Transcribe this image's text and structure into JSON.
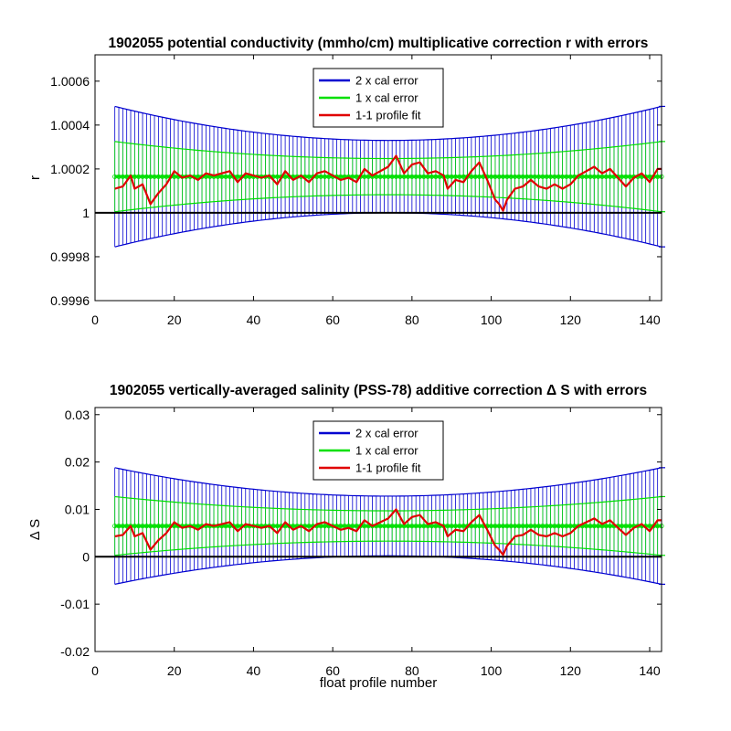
{
  "colors": {
    "two_cal": "#0000d0",
    "one_cal": "#00e000",
    "fit": "#e00000",
    "axis": "#000000"
  },
  "chart_data": [
    {
      "type": "line",
      "title": "1902055 potential conductivity (mmho/cm) multiplicative correction r with errors",
      "xlabel": "",
      "ylabel": "r",
      "xlim": [
        0,
        143
      ],
      "ylim": [
        0.9996,
        1.00072
      ],
      "xticks": [
        0,
        20,
        40,
        60,
        80,
        100,
        120,
        140
      ],
      "yticks": [
        0.9996,
        0.9998,
        1,
        1.0002,
        1.0004,
        1.0006
      ],
      "ytick_labels": [
        "0.9996",
        "0.9998",
        "1",
        "1.0002",
        "1.0004",
        "1.0006"
      ],
      "legend_position": "top-center",
      "series": [
        {
          "name": "2 x cal error",
          "type": "errorbar",
          "center": 1.000165,
          "halfwidth_ends": 0.00032,
          "halfwidth_mid": 0.000165,
          "x_range": [
            5,
            143
          ]
        },
        {
          "name": "1 x cal error",
          "type": "errorbar",
          "center": 1.000165,
          "halfwidth_ends": 0.00016,
          "halfwidth_mid": 8.25e-05,
          "x_range": [
            5,
            143
          ]
        },
        {
          "name": "1-1 profile fit",
          "x": [
            5,
            7,
            9,
            10,
            12,
            14,
            16,
            18,
            20,
            22,
            24,
            26,
            28,
            30,
            32,
            34,
            36,
            38,
            40,
            42,
            44,
            46,
            48,
            50,
            52,
            54,
            56,
            58,
            60,
            62,
            64,
            66,
            68,
            70,
            72,
            74,
            76,
            78,
            80,
            82,
            84,
            86,
            88,
            89,
            91,
            93,
            95,
            97,
            99,
            101,
            102,
            103,
            104,
            106,
            108,
            110,
            112,
            114,
            116,
            118,
            120,
            122,
            124,
            126,
            128,
            130,
            132,
            134,
            136,
            138,
            140,
            142,
            143
          ],
          "values": [
            1.00011,
            1.00012,
            1.00017,
            1.00011,
            1.00013,
            1.00004,
            1.00009,
            1.00013,
            1.00019,
            1.00016,
            1.00017,
            1.00015,
            1.00018,
            1.00017,
            1.00018,
            1.00019,
            1.00014,
            1.00018,
            1.00017,
            1.00016,
            1.00017,
            1.00013,
            1.00019,
            1.00015,
            1.00017,
            1.00014,
            1.00018,
            1.00019,
            1.00017,
            1.00015,
            1.00016,
            1.00014,
            1.0002,
            1.00017,
            1.00019,
            1.00021,
            1.00026,
            1.00018,
            1.00022,
            1.00023,
            1.00018,
            1.00019,
            1.00017,
            1.00011,
            1.00015,
            1.00014,
            1.00019,
            1.00023,
            1.00015,
            1.00006,
            1.00004,
            1.00001,
            1.00006,
            1.00011,
            1.00012,
            1.00015,
            1.00012,
            1.00011,
            1.00013,
            1.00011,
            1.00013,
            1.00017,
            1.00019,
            1.00021,
            1.00018,
            1.0002,
            1.00016,
            1.00012,
            1.00016,
            1.00018,
            1.00014,
            1.0002,
            1.0002
          ]
        }
      ]
    },
    {
      "type": "line",
      "title": "1902055 vertically-averaged salinity (PSS-78) additive correction Δ S with errors",
      "xlabel": "float profile number",
      "ylabel": "Δ S",
      "xlim": [
        0,
        143
      ],
      "ylim": [
        -0.02,
        0.0315
      ],
      "xticks": [
        0,
        20,
        40,
        60,
        80,
        100,
        120,
        140
      ],
      "yticks": [
        -0.02,
        -0.01,
        0,
        0.01,
        0.02,
        0.03
      ],
      "ytick_labels": [
        "-0.02",
        "-0.01",
        "0",
        "0.01",
        "0.02",
        "0.03"
      ],
      "legend_position": "top-center",
      "series": [
        {
          "name": "2 x cal error",
          "type": "errorbar",
          "center": 0.0065,
          "halfwidth_ends": 0.0123,
          "halfwidth_mid": 0.0063,
          "x_range": [
            5,
            143
          ]
        },
        {
          "name": "1 x cal error",
          "type": "errorbar",
          "center": 0.0065,
          "halfwidth_ends": 0.0062,
          "halfwidth_mid": 0.0032,
          "x_range": [
            5,
            143
          ]
        },
        {
          "name": "1-1 profile fit",
          "x": [
            5,
            7,
            9,
            10,
            12,
            14,
            16,
            18,
            20,
            22,
            24,
            26,
            28,
            30,
            32,
            34,
            36,
            38,
            40,
            42,
            44,
            46,
            48,
            50,
            52,
            54,
            56,
            58,
            60,
            62,
            64,
            66,
            68,
            70,
            72,
            74,
            76,
            78,
            80,
            82,
            84,
            86,
            88,
            89,
            91,
            93,
            95,
            97,
            99,
            101,
            102,
            103,
            104,
            106,
            108,
            110,
            112,
            114,
            116,
            118,
            120,
            122,
            124,
            126,
            128,
            130,
            132,
            134,
            136,
            138,
            140,
            142,
            143
          ],
          "values": [
            0.0043,
            0.0046,
            0.0065,
            0.0043,
            0.005,
            0.0015,
            0.0035,
            0.005,
            0.0073,
            0.0061,
            0.0065,
            0.0057,
            0.0069,
            0.0065,
            0.0069,
            0.0073,
            0.0054,
            0.0069,
            0.0065,
            0.0061,
            0.0065,
            0.005,
            0.0073,
            0.0057,
            0.0065,
            0.0054,
            0.0069,
            0.0073,
            0.0065,
            0.0057,
            0.0061,
            0.0054,
            0.0077,
            0.0065,
            0.0073,
            0.0081,
            0.01,
            0.0069,
            0.0084,
            0.0088,
            0.0069,
            0.0073,
            0.0065,
            0.0043,
            0.0057,
            0.0054,
            0.0073,
            0.0088,
            0.0057,
            0.0023,
            0.0015,
            0.0004,
            0.0023,
            0.0043,
            0.0046,
            0.0057,
            0.0046,
            0.0043,
            0.005,
            0.0043,
            0.005,
            0.0065,
            0.0073,
            0.0081,
            0.0069,
            0.0077,
            0.0061,
            0.0046,
            0.0061,
            0.0069,
            0.0054,
            0.0077,
            0.0077
          ]
        }
      ]
    }
  ]
}
